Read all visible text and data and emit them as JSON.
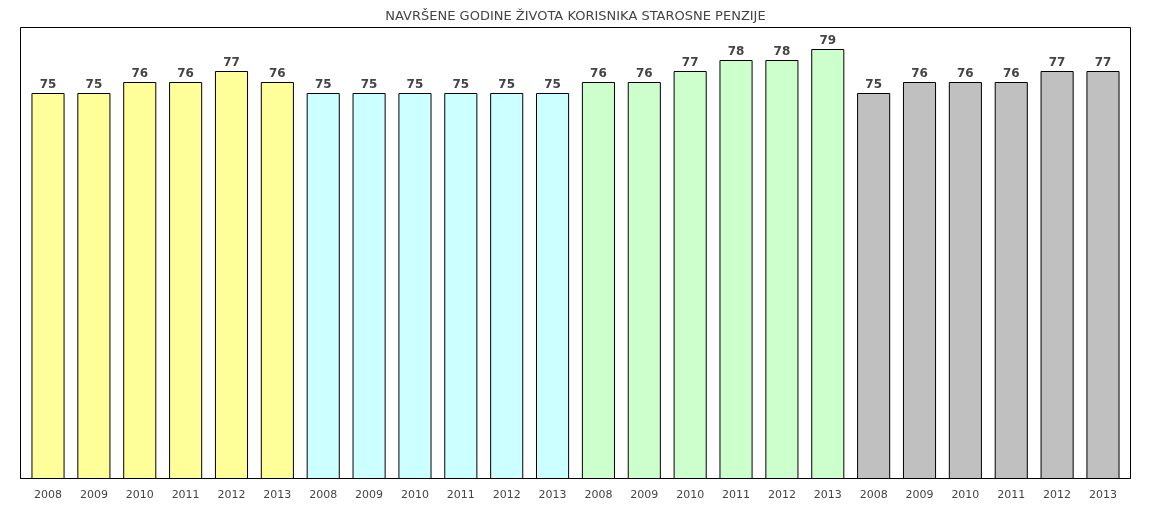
{
  "chart_data": {
    "type": "bar",
    "title": "NAVRŠENE GODINE ŽIVOTA KORISNIKA STAROSNE PENZIJE",
    "categories": [
      "2008",
      "2009",
      "2010",
      "2011",
      "2012",
      "2013",
      "2008",
      "2009",
      "2010",
      "2011",
      "2012",
      "2013",
      "2008",
      "2009",
      "2010",
      "2011",
      "2012",
      "2013",
      "2008",
      "2009",
      "2010",
      "2011",
      "2012",
      "2013"
    ],
    "values": [
      75,
      75,
      76,
      76,
      77,
      76,
      75,
      75,
      75,
      75,
      75,
      75,
      76,
      76,
      77,
      78,
      78,
      79,
      75,
      76,
      76,
      76,
      77,
      77
    ],
    "colors": [
      "#ffff99",
      "#ffff99",
      "#ffff99",
      "#ffff99",
      "#ffff99",
      "#ffff99",
      "#ccffff",
      "#ccffff",
      "#ccffff",
      "#ccffff",
      "#ccffff",
      "#ccffff",
      "#ccffcc",
      "#ccffcc",
      "#ccffcc",
      "#ccffcc",
      "#ccffcc",
      "#ccffcc",
      "#c0c0c0",
      "#c0c0c0",
      "#c0c0c0",
      "#c0c0c0",
      "#c0c0c0",
      "#c0c0c0"
    ],
    "ylim": [
      40,
      81
    ],
    "tick_labels": "x",
    "data_labels": true,
    "grid": false
  }
}
